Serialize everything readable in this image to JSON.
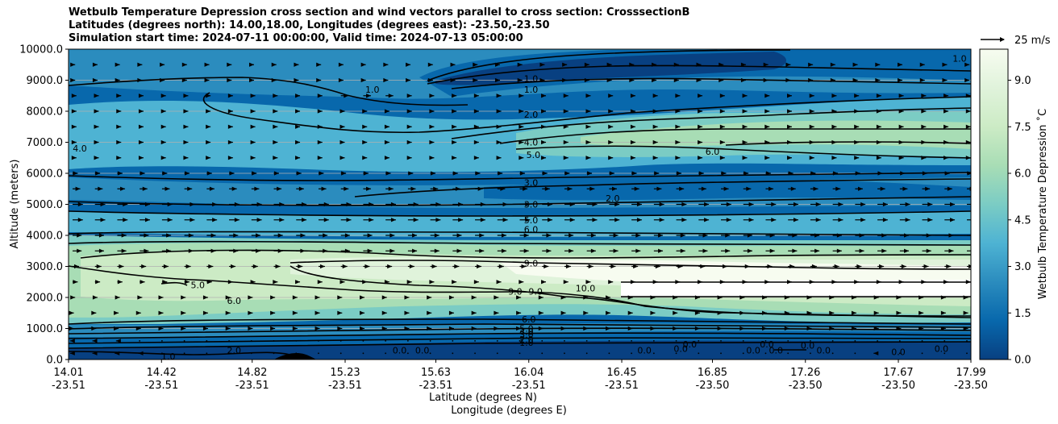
{
  "chart_data": {
    "type": "heatmap",
    "title": [
      "Wetbulb Temperature Depression cross section and wind vectors parallel to cross section: CrosssectionB",
      "Latitudes (degrees north): 14.00,18.00, Longitudes (degrees east): -23.50,-23.50",
      "Simulation start time: 2024-07-11 00:00:00, Valid time: 2024-07-13 05:00:00"
    ],
    "ylabel": "Altitude (meters)",
    "xlabel_lat": "Latitude (degrees N)",
    "xlabel_lon": "Longitude (degrees E)",
    "ylim": [
      0,
      10000
    ],
    "yticks": [
      "0.0",
      "1000.0",
      "2000.0",
      "3000.0",
      "4000.0",
      "5000.0",
      "6000.0",
      "7000.0",
      "8000.0",
      "9000.0",
      "10000.0"
    ],
    "xticks": [
      {
        "lat": "14.01",
        "lon": "-23.51"
      },
      {
        "lat": "14.42",
        "lon": "-23.51"
      },
      {
        "lat": "14.82",
        "lon": "-23.51"
      },
      {
        "lat": "15.23",
        "lon": "-23.51"
      },
      {
        "lat": "15.63",
        "lon": "-23.51"
      },
      {
        "lat": "16.04",
        "lon": "-23.51"
      },
      {
        "lat": "16.45",
        "lon": "-23.51"
      },
      {
        "lat": "16.85",
        "lon": "-23.50"
      },
      {
        "lat": "17.26",
        "lon": "-23.50"
      },
      {
        "lat": "17.67",
        "lon": "-23.50"
      },
      {
        "lat": "17.99",
        "lon": "-23.50"
      }
    ],
    "colorbar": {
      "label": "Wetbulb Temperature Depression ˚C",
      "range": [
        0,
        10
      ],
      "ticks": [
        "0.0",
        "1.5",
        "3.0",
        "4.5",
        "6.0",
        "7.5",
        "9.0"
      ],
      "colors": [
        "#084081",
        "#0868ac",
        "#2b8cbe",
        "#4eb3d3",
        "#7bccc4",
        "#a8ddb5",
        "#ccebc5",
        "#e0f3db",
        "#f7fcf0"
      ]
    },
    "quiver_key": "25 m/s",
    "contour_labels": [
      {
        "text": "1.0",
        "lat": 16.05,
        "alt": 9050
      },
      {
        "text": "1.0",
        "lat": 16.05,
        "alt": 8700
      },
      {
        "text": "1.0",
        "lat": 17.94,
        "alt": 9700
      },
      {
        "text": "1.0",
        "lat": 15.35,
        "alt": 8700
      },
      {
        "text": "2.0",
        "lat": 16.05,
        "alt": 7900
      },
      {
        "text": "4.0",
        "lat": 16.05,
        "alt": 7000
      },
      {
        "text": "4.0",
        "lat": 14.06,
        "alt": 6800
      },
      {
        "text": "5.0",
        "lat": 16.06,
        "alt": 6600
      },
      {
        "text": "6.0",
        "lat": 16.85,
        "alt": 6700
      },
      {
        "text": "3.0",
        "lat": 16.05,
        "alt": 5700
      },
      {
        "text": "3.0",
        "lat": 16.05,
        "alt": 5000
      },
      {
        "text": "2.0",
        "lat": 16.41,
        "alt": 5200
      },
      {
        "text": "5.0",
        "lat": 16.05,
        "alt": 4500
      },
      {
        "text": "6.0",
        "lat": 16.05,
        "alt": 4200
      },
      {
        "text": "9.0",
        "lat": 16.05,
        "alt": 3100
      },
      {
        "text": "9.0",
        "lat": 15.98,
        "alt": 2200
      },
      {
        "text": "9.0",
        "lat": 16.07,
        "alt": 2200
      },
      {
        "text": "10.0",
        "lat": 16.29,
        "alt": 2300
      },
      {
        "text": "5.0",
        "lat": 14.58,
        "alt": 2400
      },
      {
        "text": "6.0",
        "lat": 14.74,
        "alt": 1900
      },
      {
        "text": "6.0",
        "lat": 16.04,
        "alt": 1300
      },
      {
        "text": "5.0",
        "lat": 16.03,
        "alt": 1000
      },
      {
        "text": "4.0",
        "lat": 16.03,
        "alt": 900
      },
      {
        "text": "3.0",
        "lat": 16.03,
        "alt": 800
      },
      {
        "text": "2.0",
        "lat": 16.03,
        "alt": 650
      },
      {
        "text": "1.0",
        "lat": 16.03,
        "alt": 550
      },
      {
        "text": "0.0",
        "lat": 15.47,
        "alt": 300
      },
      {
        "text": "0.0",
        "lat": 15.57,
        "alt": 300
      },
      {
        "text": "2.0",
        "lat": 14.74,
        "alt": 300
      },
      {
        "text": "1.0",
        "lat": 14.45,
        "alt": 100
      },
      {
        "text": "0.0",
        "lat": 16.55,
        "alt": 300
      },
      {
        "text": "0.0",
        "lat": 16.71,
        "alt": 350
      },
      {
        "text": "0.0",
        "lat": 16.75,
        "alt": 500
      },
      {
        "text": "0.0",
        "lat": 17.03,
        "alt": 300
      },
      {
        "text": "0.0",
        "lat": 17.09,
        "alt": 500
      },
      {
        "text": "0.0",
        "lat": 17.13,
        "alt": 300
      },
      {
        "text": "0.0",
        "lat": 17.27,
        "alt": 450
      },
      {
        "text": "0.0",
        "lat": 17.34,
        "alt": 300
      },
      {
        "text": "0.0",
        "lat": 17.67,
        "alt": 250
      },
      {
        "text": "0.0",
        "lat": 17.86,
        "alt": 350
      }
    ],
    "wind_rows": [
      {
        "alt": 200,
        "u": [
          -2,
          -2,
          -2,
          -1,
          0,
          0,
          0,
          0,
          0,
          0,
          0,
          0,
          0,
          0,
          0,
          0,
          0,
          0,
          0,
          0,
          0,
          0,
          0,
          0,
          0,
          0,
          0,
          0,
          0,
          0,
          0,
          0,
          0,
          0,
          0,
          0,
          -3,
          0,
          0,
          0,
          0
        ]
      },
      {
        "alt": 600,
        "u": [
          -2,
          -2,
          -1,
          0,
          0,
          0,
          0,
          0,
          0,
          0,
          0,
          0,
          0,
          0,
          0,
          0,
          0,
          0,
          0,
          0,
          0,
          0,
          0,
          0,
          0,
          0,
          0,
          0,
          0,
          0,
          0,
          0,
          0,
          0,
          0,
          0,
          0,
          0,
          0,
          0,
          0
        ]
      },
      {
        "alt": 1000,
        "u": [
          1,
          1,
          1,
          1,
          1,
          1,
          1,
          1,
          1,
          1,
          1,
          1,
          1,
          1,
          1,
          1,
          1,
          1,
          1,
          1,
          1,
          1,
          1,
          1,
          1,
          1,
          1,
          1,
          1,
          1,
          1,
          1,
          1,
          1,
          1,
          1,
          1,
          1,
          1,
          1,
          1
        ]
      },
      {
        "alt": 1500,
        "u": [
          1,
          1,
          1,
          1,
          1,
          1,
          1,
          1,
          1,
          1,
          1,
          1,
          1,
          1,
          1,
          1,
          1,
          1,
          1,
          1,
          1,
          1,
          1,
          1,
          1,
          1,
          1,
          1,
          1,
          1,
          1,
          1,
          1,
          1,
          1,
          1,
          1,
          1,
          1,
          1,
          1
        ]
      },
      {
        "alt": 2000,
        "u": [
          2,
          2,
          2,
          2,
          1,
          1,
          1,
          1,
          1,
          1,
          1,
          1,
          1,
          1,
          1,
          1,
          1,
          1,
          1,
          1,
          1,
          1,
          1,
          1,
          1,
          1,
          1,
          1,
          1,
          1,
          1,
          1,
          1,
          1,
          1,
          1,
          1,
          1,
          1,
          1,
          1
        ]
      },
      {
        "alt": 2500,
        "u": [
          4,
          4,
          4,
          4,
          4,
          4,
          4,
          3,
          3,
          3,
          3,
          3,
          3,
          3,
          3,
          3,
          3,
          3,
          3,
          3,
          3,
          3,
          3,
          3,
          3,
          3,
          3,
          3,
          3,
          3,
          3,
          3,
          3,
          3,
          3,
          3,
          3,
          3,
          3,
          3,
          3
        ]
      },
      {
        "alt": 3000,
        "u": [
          5,
          5,
          5,
          5,
          5,
          5,
          5,
          5,
          5,
          5,
          5,
          5,
          5,
          5,
          5,
          5,
          5,
          5,
          5,
          5,
          5,
          5,
          5,
          5,
          5,
          5,
          5,
          5,
          5,
          5,
          5,
          5,
          5,
          5,
          5,
          5,
          5,
          5,
          5,
          5,
          5
        ]
      },
      {
        "alt": 3500,
        "u": [
          7,
          7,
          7,
          7,
          7,
          7,
          7,
          7,
          7,
          7,
          7,
          7,
          7,
          7,
          7,
          7,
          7,
          7,
          7,
          7,
          7,
          7,
          7,
          7,
          7,
          7,
          7,
          7,
          7,
          7,
          7,
          7,
          7,
          7,
          7,
          7,
          7,
          7,
          7,
          7,
          7
        ]
      },
      {
        "alt": 4000,
        "u": [
          7,
          7,
          7,
          7,
          7,
          7,
          7,
          7,
          7,
          7,
          7,
          7,
          7,
          7,
          7,
          7,
          7,
          7,
          7,
          7,
          7,
          7,
          7,
          7,
          7,
          7,
          7,
          7,
          7,
          7,
          7,
          7,
          7,
          7,
          7,
          7,
          7,
          7,
          7,
          7,
          7
        ]
      },
      {
        "alt": 4500,
        "u": [
          8,
          8,
          8,
          8,
          8,
          8,
          8,
          8,
          8,
          8,
          8,
          8,
          8,
          8,
          8,
          8,
          8,
          8,
          8,
          8,
          8,
          8,
          8,
          8,
          8,
          8,
          8,
          8,
          8,
          8,
          8,
          8,
          8,
          8,
          8,
          8,
          8,
          8,
          8,
          8,
          8
        ]
      },
      {
        "alt": 5000,
        "u": [
          8,
          8,
          8,
          8,
          8,
          8,
          8,
          8,
          8,
          8,
          8,
          8,
          8,
          8,
          8,
          8,
          8,
          8,
          8,
          8,
          8,
          8,
          8,
          8,
          8,
          8,
          8,
          8,
          8,
          8,
          8,
          8,
          8,
          8,
          8,
          8,
          8,
          8,
          8,
          8,
          8
        ]
      },
      {
        "alt": 5500,
        "u": [
          6,
          6,
          6,
          6,
          6,
          6,
          6,
          6,
          6,
          6,
          6,
          6,
          6,
          6,
          6,
          6,
          6,
          6,
          6,
          6,
          6,
          6,
          6,
          6,
          6,
          6,
          6,
          6,
          6,
          6,
          6,
          6,
          6,
          6,
          6,
          6,
          6,
          6,
          6,
          6,
          6
        ]
      },
      {
        "alt": 6000,
        "u": [
          4,
          4,
          4,
          4,
          4,
          4,
          4,
          4,
          4,
          4,
          4,
          4,
          4,
          4,
          4,
          4,
          4,
          4,
          4,
          4,
          4,
          4,
          4,
          4,
          4,
          4,
          4,
          4,
          4,
          4,
          4,
          4,
          4,
          4,
          4,
          4,
          4,
          4,
          4,
          4,
          4
        ]
      },
      {
        "alt": 6500,
        "u": [
          3,
          3,
          3,
          3,
          3,
          3,
          3,
          3,
          3,
          3,
          3,
          3,
          3,
          3,
          3,
          3,
          3,
          3,
          3,
          3,
          3,
          3,
          3,
          3,
          3,
          3,
          3,
          3,
          3,
          3,
          3,
          3,
          3,
          3,
          3,
          3,
          3,
          3,
          3,
          3,
          3
        ]
      },
      {
        "alt": 7000,
        "u": [
          3,
          3,
          3,
          3,
          3,
          3,
          3,
          3,
          3,
          3,
          3,
          3,
          3,
          3,
          3,
          3,
          3,
          3,
          3,
          3,
          3,
          3,
          3,
          3,
          3,
          3,
          3,
          3,
          3,
          3,
          3,
          3,
          3,
          3,
          3,
          3,
          3,
          3,
          3,
          3,
          3
        ]
      },
      {
        "alt": 7500,
        "u": [
          3,
          3,
          3,
          3,
          3,
          3,
          3,
          3,
          3,
          3,
          3,
          3,
          3,
          3,
          3,
          3,
          3,
          3,
          3,
          3,
          3,
          3,
          3,
          3,
          3,
          3,
          3,
          3,
          3,
          3,
          3,
          3,
          3,
          3,
          3,
          3,
          3,
          3,
          3,
          3,
          3
        ]
      },
      {
        "alt": 8000,
        "u": [
          3,
          3,
          3,
          3,
          3,
          3,
          3,
          3,
          3,
          3,
          3,
          3,
          3,
          3,
          3,
          3,
          3,
          3,
          3,
          3,
          3,
          3,
          3,
          3,
          3,
          3,
          3,
          3,
          3,
          3,
          3,
          3,
          3,
          3,
          3,
          3,
          3,
          3,
          3,
          3,
          3
        ]
      },
      {
        "alt": 8500,
        "u": [
          3,
          3,
          3,
          3,
          3,
          3,
          3,
          3,
          3,
          3,
          3,
          3,
          6,
          6,
          6,
          3,
          3,
          3,
          3,
          3,
          3,
          3,
          3,
          3,
          3,
          3,
          3,
          3,
          3,
          3,
          3,
          3,
          3,
          3,
          3,
          3,
          3,
          3,
          3,
          3,
          3
        ]
      },
      {
        "alt": 9000,
        "u": [
          2,
          2,
          2,
          2,
          2,
          2,
          2,
          2,
          2,
          2,
          2,
          2,
          2,
          2,
          2,
          2,
          2,
          2,
          2,
          2,
          2,
          2,
          2,
          2,
          2,
          2,
          2,
          2,
          2,
          2,
          2,
          2,
          2,
          2,
          2,
          2,
          2,
          2,
          2,
          2,
          2
        ]
      },
      {
        "alt": 9500,
        "u": [
          2,
          2,
          2,
          2,
          2,
          2,
          2,
          2,
          2,
          2,
          2,
          2,
          2,
          2,
          2,
          2,
          2,
          2,
          2,
          2,
          2,
          2,
          2,
          2,
          2,
          2,
          2,
          2,
          2,
          2,
          2,
          2,
          2,
          2,
          2,
          2,
          2,
          2,
          2,
          2,
          2
        ]
      }
    ]
  }
}
